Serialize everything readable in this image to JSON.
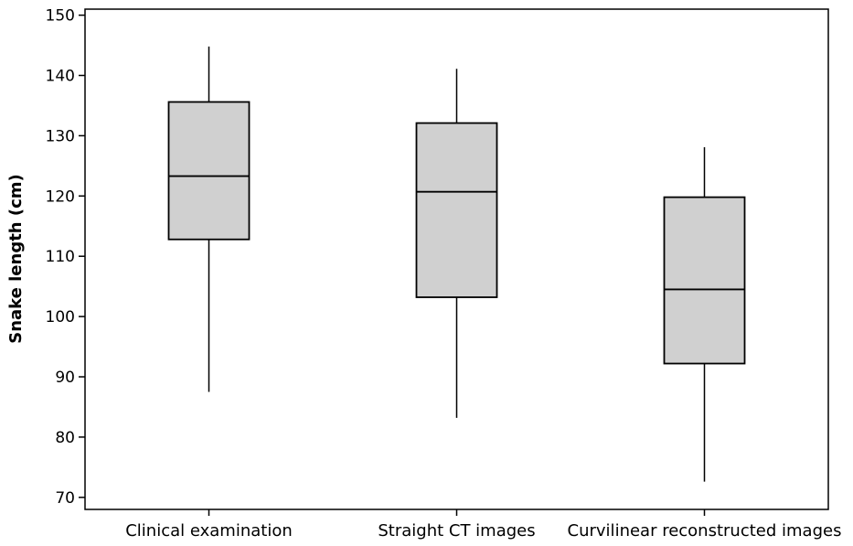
{
  "chart_data": {
    "type": "box",
    "title": "",
    "xlabel": "",
    "ylabel": "Snake length (cm)",
    "ylim": [
      68,
      151
    ],
    "yticks": [
      70,
      80,
      90,
      100,
      110,
      120,
      130,
      140,
      150
    ],
    "grid": false,
    "categories": [
      "Clinical examination",
      "Straight CT images",
      "Curvilinear reconstructed images"
    ],
    "boxes": [
      {
        "category": "Clinical examination",
        "whisker_low": 87.5,
        "q1": 112.8,
        "median": 123.3,
        "q3": 135.6,
        "whisker_high": 144.8
      },
      {
        "category": "Straight CT images",
        "whisker_low": 83.2,
        "q1": 103.2,
        "median": 120.7,
        "q3": 132.1,
        "whisker_high": 141.1
      },
      {
        "category": "Curvilinear reconstructed images",
        "whisker_low": 72.6,
        "q1": 92.2,
        "median": 104.5,
        "q3": 119.8,
        "whisker_high": 128.1
      }
    ],
    "colors": {
      "box_fill": "#d0d0d0",
      "stroke": "#000000"
    }
  }
}
